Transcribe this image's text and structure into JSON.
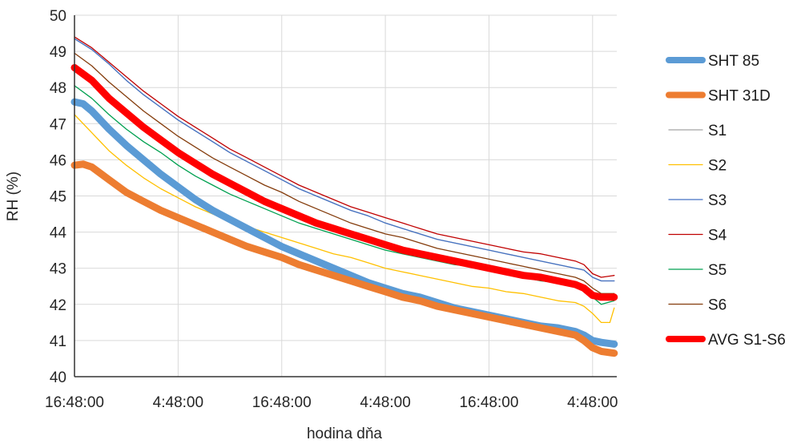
{
  "chart_data": {
    "type": "line",
    "title": "",
    "xlabel": "hodina dňa",
    "ylabel": "RH (%)",
    "ylim": [
      40,
      50
    ],
    "y_ticks": [
      "40",
      "41",
      "42",
      "43",
      "44",
      "45",
      "46",
      "47",
      "48",
      "49",
      "50"
    ],
    "x_tick_labels": [
      "16:48:00",
      "4:48:00",
      "16:48:00",
      "4:48:00",
      "16:48:00",
      "4:48:00"
    ],
    "x_tick_hours": [
      0,
      12,
      24,
      36,
      48,
      60
    ],
    "xlim_hours": [
      0,
      62.8
    ],
    "grid": true,
    "legend_position": "right",
    "series": [
      {
        "name": "SHT 85",
        "color": "#5b9bd5",
        "weight": "thick",
        "points": [
          [
            0,
            47.6
          ],
          [
            1,
            47.55
          ],
          [
            2,
            47.35
          ],
          [
            4,
            46.85
          ],
          [
            6,
            46.4
          ],
          [
            8,
            46.0
          ],
          [
            10,
            45.6
          ],
          [
            12,
            45.25
          ],
          [
            14,
            44.9
          ],
          [
            16,
            44.6
          ],
          [
            18,
            44.35
          ],
          [
            20,
            44.1
          ],
          [
            22,
            43.85
          ],
          [
            24,
            43.6
          ],
          [
            26,
            43.4
          ],
          [
            28,
            43.2
          ],
          [
            30,
            43.0
          ],
          [
            32,
            42.8
          ],
          [
            34,
            42.6
          ],
          [
            36,
            42.45
          ],
          [
            38,
            42.3
          ],
          [
            40,
            42.2
          ],
          [
            42,
            42.05
          ],
          [
            44,
            41.9
          ],
          [
            46,
            41.8
          ],
          [
            48,
            41.7
          ],
          [
            50,
            41.6
          ],
          [
            52,
            41.5
          ],
          [
            54,
            41.4
          ],
          [
            56,
            41.35
          ],
          [
            58,
            41.25
          ],
          [
            59,
            41.15
          ],
          [
            60,
            41.0
          ],
          [
            61,
            40.95
          ],
          [
            62.5,
            40.9
          ]
        ]
      },
      {
        "name": "SHT 31D",
        "color": "#ed7d31",
        "weight": "thick",
        "points": [
          [
            0,
            45.85
          ],
          [
            1,
            45.88
          ],
          [
            2,
            45.8
          ],
          [
            4,
            45.45
          ],
          [
            6,
            45.1
          ],
          [
            8,
            44.85
          ],
          [
            10,
            44.6
          ],
          [
            12,
            44.4
          ],
          [
            14,
            44.2
          ],
          [
            16,
            44.0
          ],
          [
            18,
            43.8
          ],
          [
            20,
            43.6
          ],
          [
            22,
            43.45
          ],
          [
            24,
            43.3
          ],
          [
            26,
            43.1
          ],
          [
            28,
            42.95
          ],
          [
            30,
            42.8
          ],
          [
            32,
            42.65
          ],
          [
            34,
            42.5
          ],
          [
            36,
            42.35
          ],
          [
            38,
            42.2
          ],
          [
            40,
            42.1
          ],
          [
            42,
            41.95
          ],
          [
            44,
            41.85
          ],
          [
            46,
            41.75
          ],
          [
            48,
            41.65
          ],
          [
            50,
            41.55
          ],
          [
            52,
            41.45
          ],
          [
            54,
            41.35
          ],
          [
            56,
            41.25
          ],
          [
            58,
            41.15
          ],
          [
            59,
            41.0
          ],
          [
            60,
            40.8
          ],
          [
            61,
            40.7
          ],
          [
            62.5,
            40.65
          ]
        ]
      },
      {
        "name": "S1",
        "color": "#a5a5a5",
        "weight": "thin",
        "points": [
          [
            0,
            49.35
          ],
          [
            2,
            49.05
          ],
          [
            4,
            48.65
          ],
          [
            6,
            48.2
          ],
          [
            8,
            47.8
          ],
          [
            10,
            47.45
          ],
          [
            12,
            47.1
          ],
          [
            14,
            46.8
          ],
          [
            16,
            46.5
          ],
          [
            18,
            46.2
          ],
          [
            20,
            45.95
          ],
          [
            22,
            45.7
          ],
          [
            24,
            45.45
          ],
          [
            26,
            45.2
          ],
          [
            28,
            45.0
          ],
          [
            30,
            44.8
          ],
          [
            32,
            44.6
          ],
          [
            34,
            44.45
          ],
          [
            36,
            44.25
          ],
          [
            38,
            44.1
          ],
          [
            40,
            43.95
          ],
          [
            42,
            43.8
          ],
          [
            44,
            43.7
          ],
          [
            46,
            43.6
          ],
          [
            48,
            43.5
          ],
          [
            50,
            43.4
          ],
          [
            52,
            43.3
          ],
          [
            54,
            43.2
          ],
          [
            56,
            43.1
          ],
          [
            58,
            43.0
          ],
          [
            59,
            42.95
          ],
          [
            60,
            42.75
          ],
          [
            61,
            42.65
          ],
          [
            62.5,
            42.65
          ]
        ]
      },
      {
        "name": "S2",
        "color": "#ffc000",
        "weight": "thin",
        "points": [
          [
            0,
            47.25
          ],
          [
            2,
            46.75
          ],
          [
            4,
            46.25
          ],
          [
            6,
            45.85
          ],
          [
            8,
            45.5
          ],
          [
            10,
            45.2
          ],
          [
            12,
            44.95
          ],
          [
            14,
            44.7
          ],
          [
            16,
            44.5
          ],
          [
            18,
            44.3
          ],
          [
            20,
            44.15
          ],
          [
            22,
            44.0
          ],
          [
            24,
            43.85
          ],
          [
            26,
            43.7
          ],
          [
            28,
            43.55
          ],
          [
            30,
            43.4
          ],
          [
            32,
            43.3
          ],
          [
            34,
            43.15
          ],
          [
            36,
            43.0
          ],
          [
            38,
            42.9
          ],
          [
            40,
            42.8
          ],
          [
            42,
            42.7
          ],
          [
            44,
            42.6
          ],
          [
            46,
            42.5
          ],
          [
            48,
            42.45
          ],
          [
            50,
            42.35
          ],
          [
            52,
            42.3
          ],
          [
            54,
            42.2
          ],
          [
            56,
            42.1
          ],
          [
            58,
            42.05
          ],
          [
            59,
            41.95
          ],
          [
            60,
            41.75
          ],
          [
            61,
            41.5
          ],
          [
            62,
            41.5
          ],
          [
            62.5,
            41.9
          ]
        ]
      },
      {
        "name": "S3",
        "color": "#4472c4",
        "weight": "thin",
        "points": [
          [
            0,
            49.35
          ],
          [
            2,
            49.05
          ],
          [
            4,
            48.65
          ],
          [
            6,
            48.2
          ],
          [
            8,
            47.8
          ],
          [
            10,
            47.45
          ],
          [
            12,
            47.1
          ],
          [
            14,
            46.8
          ],
          [
            16,
            46.5
          ],
          [
            18,
            46.2
          ],
          [
            20,
            45.95
          ],
          [
            22,
            45.7
          ],
          [
            24,
            45.45
          ],
          [
            26,
            45.2
          ],
          [
            28,
            45.0
          ],
          [
            30,
            44.8
          ],
          [
            32,
            44.6
          ],
          [
            34,
            44.45
          ],
          [
            36,
            44.25
          ],
          [
            38,
            44.1
          ],
          [
            40,
            43.95
          ],
          [
            42,
            43.8
          ],
          [
            44,
            43.7
          ],
          [
            46,
            43.6
          ],
          [
            48,
            43.5
          ],
          [
            50,
            43.4
          ],
          [
            52,
            43.3
          ],
          [
            54,
            43.2
          ],
          [
            56,
            43.1
          ],
          [
            58,
            43.0
          ],
          [
            59,
            42.95
          ],
          [
            60,
            42.75
          ],
          [
            61,
            42.65
          ],
          [
            62.5,
            42.65
          ]
        ]
      },
      {
        "name": "S4",
        "color": "#c00000",
        "weight": "thin",
        "points": [
          [
            0,
            49.4
          ],
          [
            2,
            49.1
          ],
          [
            4,
            48.7
          ],
          [
            6,
            48.3
          ],
          [
            8,
            47.9
          ],
          [
            10,
            47.55
          ],
          [
            12,
            47.2
          ],
          [
            14,
            46.9
          ],
          [
            16,
            46.6
          ],
          [
            18,
            46.3
          ],
          [
            20,
            46.05
          ],
          [
            22,
            45.8
          ],
          [
            24,
            45.55
          ],
          [
            26,
            45.3
          ],
          [
            28,
            45.1
          ],
          [
            30,
            44.9
          ],
          [
            32,
            44.7
          ],
          [
            34,
            44.55
          ],
          [
            36,
            44.4
          ],
          [
            38,
            44.25
          ],
          [
            40,
            44.1
          ],
          [
            42,
            43.95
          ],
          [
            44,
            43.85
          ],
          [
            46,
            43.75
          ],
          [
            48,
            43.65
          ],
          [
            50,
            43.55
          ],
          [
            52,
            43.45
          ],
          [
            54,
            43.4
          ],
          [
            56,
            43.3
          ],
          [
            58,
            43.2
          ],
          [
            59,
            43.1
          ],
          [
            60,
            42.85
          ],
          [
            61,
            42.75
          ],
          [
            62.5,
            42.8
          ]
        ]
      },
      {
        "name": "S5",
        "color": "#00a050",
        "weight": "thin",
        "points": [
          [
            0,
            48.05
          ],
          [
            2,
            47.7
          ],
          [
            4,
            47.25
          ],
          [
            6,
            46.85
          ],
          [
            8,
            46.5
          ],
          [
            10,
            46.2
          ],
          [
            12,
            45.85
          ],
          [
            14,
            45.55
          ],
          [
            16,
            45.3
          ],
          [
            18,
            45.05
          ],
          [
            20,
            44.85
          ],
          [
            22,
            44.65
          ],
          [
            24,
            44.45
          ],
          [
            26,
            44.25
          ],
          [
            28,
            44.1
          ],
          [
            30,
            43.95
          ],
          [
            32,
            43.8
          ],
          [
            34,
            43.65
          ],
          [
            36,
            43.5
          ],
          [
            38,
            43.4
          ],
          [
            40,
            43.3
          ],
          [
            42,
            43.2
          ],
          [
            44,
            43.1
          ],
          [
            46,
            43.05
          ],
          [
            48,
            42.95
          ],
          [
            50,
            42.85
          ],
          [
            52,
            42.75
          ],
          [
            54,
            42.65
          ],
          [
            56,
            42.6
          ],
          [
            58,
            42.5
          ],
          [
            59,
            42.4
          ],
          [
            60,
            42.2
          ],
          [
            61,
            42.0
          ],
          [
            62.5,
            42.1
          ]
        ]
      },
      {
        "name": "S6",
        "color": "#843c0c",
        "weight": "thin",
        "points": [
          [
            0,
            48.95
          ],
          [
            2,
            48.6
          ],
          [
            4,
            48.15
          ],
          [
            6,
            47.75
          ],
          [
            8,
            47.35
          ],
          [
            10,
            47.0
          ],
          [
            12,
            46.65
          ],
          [
            14,
            46.35
          ],
          [
            16,
            46.05
          ],
          [
            18,
            45.8
          ],
          [
            20,
            45.55
          ],
          [
            22,
            45.3
          ],
          [
            24,
            45.1
          ],
          [
            26,
            44.85
          ],
          [
            28,
            44.65
          ],
          [
            30,
            44.45
          ],
          [
            32,
            44.25
          ],
          [
            34,
            44.1
          ],
          [
            36,
            43.95
          ],
          [
            38,
            43.85
          ],
          [
            40,
            43.7
          ],
          [
            42,
            43.55
          ],
          [
            44,
            43.45
          ],
          [
            46,
            43.35
          ],
          [
            48,
            43.25
          ],
          [
            50,
            43.15
          ],
          [
            52,
            43.05
          ],
          [
            54,
            42.95
          ],
          [
            56,
            42.85
          ],
          [
            58,
            42.75
          ],
          [
            59,
            42.65
          ],
          [
            60,
            42.45
          ],
          [
            61,
            42.3
          ],
          [
            62.5,
            42.3
          ]
        ]
      },
      {
        "name": "AVG S1-S6",
        "color": "#ff0000",
        "weight": "thick",
        "points": [
          [
            0,
            48.55
          ],
          [
            2,
            48.2
          ],
          [
            4,
            47.7
          ],
          [
            6,
            47.3
          ],
          [
            8,
            46.9
          ],
          [
            10,
            46.55
          ],
          [
            12,
            46.2
          ],
          [
            14,
            45.9
          ],
          [
            16,
            45.6
          ],
          [
            18,
            45.35
          ],
          [
            20,
            45.1
          ],
          [
            22,
            44.85
          ],
          [
            24,
            44.65
          ],
          [
            26,
            44.45
          ],
          [
            28,
            44.25
          ],
          [
            30,
            44.1
          ],
          [
            32,
            43.95
          ],
          [
            34,
            43.8
          ],
          [
            36,
            43.65
          ],
          [
            38,
            43.5
          ],
          [
            40,
            43.4
          ],
          [
            42,
            43.3
          ],
          [
            44,
            43.2
          ],
          [
            46,
            43.1
          ],
          [
            48,
            43.0
          ],
          [
            50,
            42.9
          ],
          [
            52,
            42.8
          ],
          [
            54,
            42.75
          ],
          [
            56,
            42.65
          ],
          [
            58,
            42.55
          ],
          [
            59,
            42.45
          ],
          [
            60,
            42.25
          ],
          [
            61,
            42.2
          ],
          [
            62,
            42.2
          ],
          [
            62.5,
            42.2
          ]
        ]
      }
    ]
  }
}
